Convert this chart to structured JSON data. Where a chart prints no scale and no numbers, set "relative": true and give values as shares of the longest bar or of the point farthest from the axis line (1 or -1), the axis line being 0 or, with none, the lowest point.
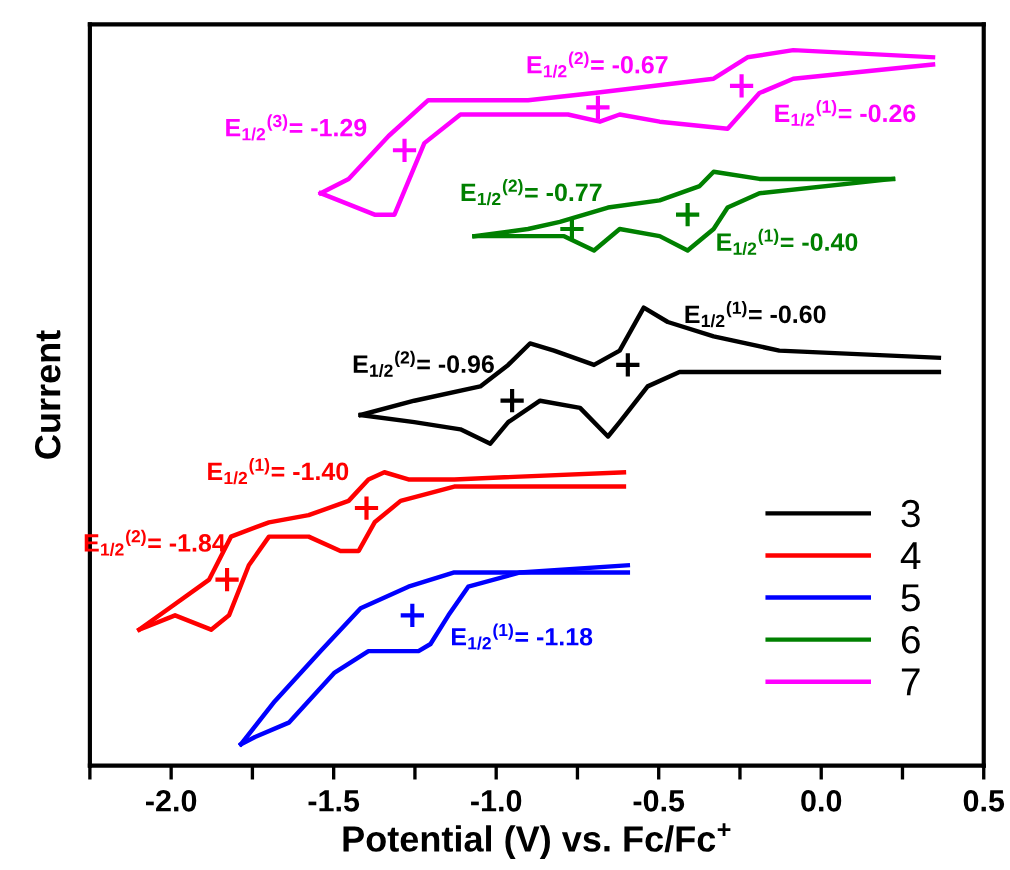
{
  "chart_data": {
    "type": "line",
    "relative": true,
    "xlabel": "Potential (V) vs. Fc/Fc$^{+}$",
    "ylabel": "Current",
    "xlim": [
      -2.25,
      0.5
    ],
    "xticks": [
      {
        "value": -2.25,
        "label": null
      },
      {
        "value": -2.0,
        "label": "-2.0"
      },
      {
        "value": -1.75,
        "label": null
      },
      -1.5,
      {
        "value": -1.25,
        "label": null
      },
      {
        "value": -1.0,
        "label": "-1.0"
      },
      {
        "value": -0.75,
        "label": null
      },
      -0.5,
      {
        "value": -0.25,
        "label": null
      },
      {
        "value": 0.0,
        "label": "0.0"
      },
      {
        "value": 0.25,
        "label": null
      },
      0.5
    ],
    "grid": false,
    "legend": "bottom right",
    "marker": "none",
    "line_style": "solid",
    "series": [
      {
        "name": "3",
        "color": "#000000",
        "x": [
          -1.417,
          -1.252,
          -1.049,
          -0.963,
          -0.896,
          -0.822,
          -0.699,
          -0.62,
          -0.546,
          -0.472,
          -0.331,
          -0.129,
          0.362
        ],
        "values": [
          0.49,
          0.51,
          0.53,
          0.56,
          0.59,
          0.58,
          0.56,
          0.58,
          0.64,
          0.62,
          0.6,
          0.58,
          0.57
        ]
      },
      {
        "color": "#000000",
        "x": [
          0.362,
          -0.129,
          -0.436,
          -0.534,
          -0.62,
          -0.656,
          -0.742,
          -0.865,
          -0.963,
          -1.018,
          -1.11,
          -1.252,
          -1.417
        ],
        "values": [
          0.55,
          0.55,
          0.55,
          0.53,
          0.48,
          0.46,
          0.5,
          0.51,
          0.48,
          0.45,
          0.47,
          0.48,
          0.49
        ]
      },
      {
        "name": "4",
        "color": "#ff0000",
        "x": [
          -2.098,
          -2.006,
          -1.883,
          -1.816,
          -1.699,
          -1.577,
          -1.454,
          -1.393,
          -1.344,
          -1.27,
          -1.129,
          -0.607
        ],
        "values": [
          0.19,
          0.22,
          0.26,
          0.32,
          0.34,
          0.35,
          0.37,
          0.4,
          0.41,
          0.4,
          0.4,
          0.41
        ]
      },
      {
        "color": "#ff0000",
        "x": [
          -0.607,
          -1.129,
          -1.294,
          -1.374,
          -1.423,
          -1.479,
          -1.577,
          -1.699,
          -1.761,
          -1.822,
          -1.877,
          -1.988,
          -2.098
        ],
        "values": [
          0.39,
          0.39,
          0.37,
          0.34,
          0.3,
          0.3,
          0.32,
          0.32,
          0.28,
          0.21,
          0.19,
          0.21,
          0.19
        ]
      },
      {
        "name": "5",
        "color": "#0000ff",
        "x": [
          -1.785,
          -1.681,
          -1.54,
          -1.417,
          -1.27,
          -1.129,
          -0.926,
          -0.595
        ],
        "values": [
          0.03,
          0.09,
          0.16,
          0.22,
          0.25,
          0.27,
          0.27,
          0.28
        ]
      },
      {
        "color": "#0000ff",
        "x": [
          -0.595,
          -0.926,
          -1.086,
          -1.147,
          -1.202,
          -1.239,
          -1.294,
          -1.393,
          -1.497,
          -1.638,
          -1.742,
          -1.785
        ],
        "values": [
          0.27,
          0.27,
          0.25,
          0.21,
          0.17,
          0.16,
          0.16,
          0.16,
          0.13,
          0.06,
          0.04,
          0.03
        ]
      },
      {
        "name": "6",
        "color": "#008000",
        "x": [
          -1.067,
          -0.902,
          -0.804,
          -0.656,
          -0.497,
          -0.374,
          -0.331,
          -0.19,
          0.221
        ],
        "values": [
          0.74,
          0.75,
          0.76,
          0.78,
          0.79,
          0.81,
          0.83,
          0.82,
          0.82
        ]
      },
      {
        "color": "#008000",
        "x": [
          0.221,
          -0.19,
          -0.288,
          -0.331,
          -0.411,
          -0.497,
          -0.62,
          -0.699,
          -0.791,
          -0.902,
          -1.067
        ],
        "values": [
          0.82,
          0.8,
          0.78,
          0.75,
          0.72,
          0.74,
          0.75,
          0.72,
          0.74,
          0.74,
          0.74
        ]
      },
      {
        "name": "7",
        "color": "#ff00ff",
        "x": [
          -1.54,
          -1.454,
          -1.331,
          -1.209,
          -0.902,
          -0.699,
          -0.331,
          -0.227,
          -0.086,
          0.344
        ],
        "values": [
          0.8,
          0.82,
          0.88,
          0.93,
          0.93,
          0.94,
          0.96,
          0.99,
          1.0,
          0.99
        ]
      },
      {
        "color": "#ff00ff",
        "x": [
          0.344,
          -0.086,
          -0.19,
          -0.288,
          -0.497,
          -0.62,
          -0.681,
          -0.779,
          -1.11,
          -1.221,
          -1.313,
          -1.374,
          -1.54
        ],
        "values": [
          0.98,
          0.96,
          0.94,
          0.89,
          0.9,
          0.91,
          0.9,
          0.91,
          0.91,
          0.87,
          0.77,
          0.77,
          0.8
        ]
      },
      {
        "type": "scatter",
        "marker": "cross",
        "x": [
          -1.282,
          -0.687,
          -0.245,
          -0.767,
          -0.411,
          -0.951,
          -0.595,
          -1.828,
          -1.399,
          -1.258
        ],
        "values": [
          0.86,
          0.92,
          0.95,
          0.75,
          0.77,
          0.51,
          0.56,
          0.26,
          0.36,
          0.21
        ],
        "colors": [
          "#ff00ff",
          "#ff00ff",
          "#ff00ff",
          "#008000",
          "#008000",
          "#000000",
          "#000000",
          "#ff0000",
          "#ff0000",
          "#0000ff"
        ]
      }
    ],
    "annotations": [
      {
        "text": "E$_{1/2}$$^{(3)}$= -1.29",
        "x": -1.282,
        "y": 0.86
      },
      {
        "text": "E$_{1/2}$$^{(2)}$= -0.67",
        "x": -0.687,
        "y": 0.92
      },
      {
        "text": "E$_{1/2}$$^{(1)}$= -0.26",
        "x": -0.245,
        "y": 0.95
      },
      {
        "text": "E$_{1/2}$$^{(2)}$= -0.77",
        "x": -0.767,
        "y": 0.75
      },
      {
        "text": "E$_{1/2}$$^{(1)}$= -0.40",
        "x": -0.411,
        "y": 0.77
      },
      {
        "text": "E$_{1/2}$$^{(1)}$= -0.60",
        "x": -0.595,
        "y": 0.56
      },
      {
        "text": "E$_{1/2}$$^{(2)}$= -0.96",
        "x": -0.951,
        "y": 0.51
      },
      {
        "text": "E$_{1/2}$$^{(1)}$= -1.40",
        "x": -1.399,
        "y": 0.36
      },
      {
        "text": "E$_{1/2}$$^{(2)}$= -1.84",
        "x": -1.828,
        "y": 0.26
      },
      {
        "text": "E$_{1/2}$$^{(1)}$= -1.18",
        "x": -1.258,
        "y": 0.21
      }
    ]
  }
}
